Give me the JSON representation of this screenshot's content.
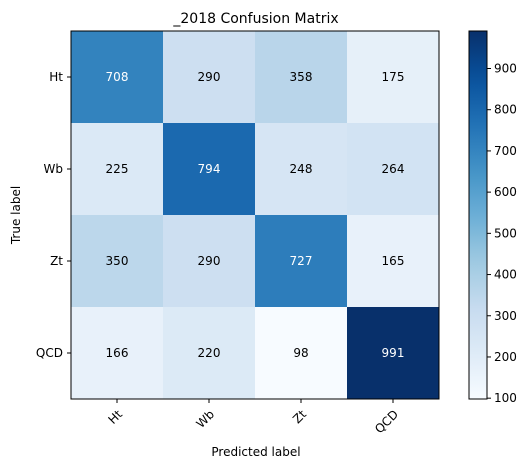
{
  "chart_data": {
    "type": "heatmap",
    "title": "_2018 Confusion Matrix",
    "xlabel": "Predicted label",
    "ylabel": "True label",
    "x_categories": [
      "Ht",
      "Wb",
      "Zt",
      "QCD"
    ],
    "y_categories": [
      "Ht",
      "Wb",
      "Zt",
      "QCD"
    ],
    "values": [
      [
        708,
        290,
        358,
        175
      ],
      [
        225,
        794,
        248,
        264
      ],
      [
        350,
        290,
        727,
        165
      ],
      [
        166,
        220,
        98,
        991
      ]
    ],
    "colormap": "Blues",
    "color_range": [
      98,
      991
    ],
    "colorbar_ticks": [
      100,
      200,
      300,
      400,
      500,
      600,
      700,
      800,
      900
    ],
    "text_threshold": 544.5,
    "text_colors": {
      "dark": "#000000",
      "light": "#ffffff"
    }
  }
}
